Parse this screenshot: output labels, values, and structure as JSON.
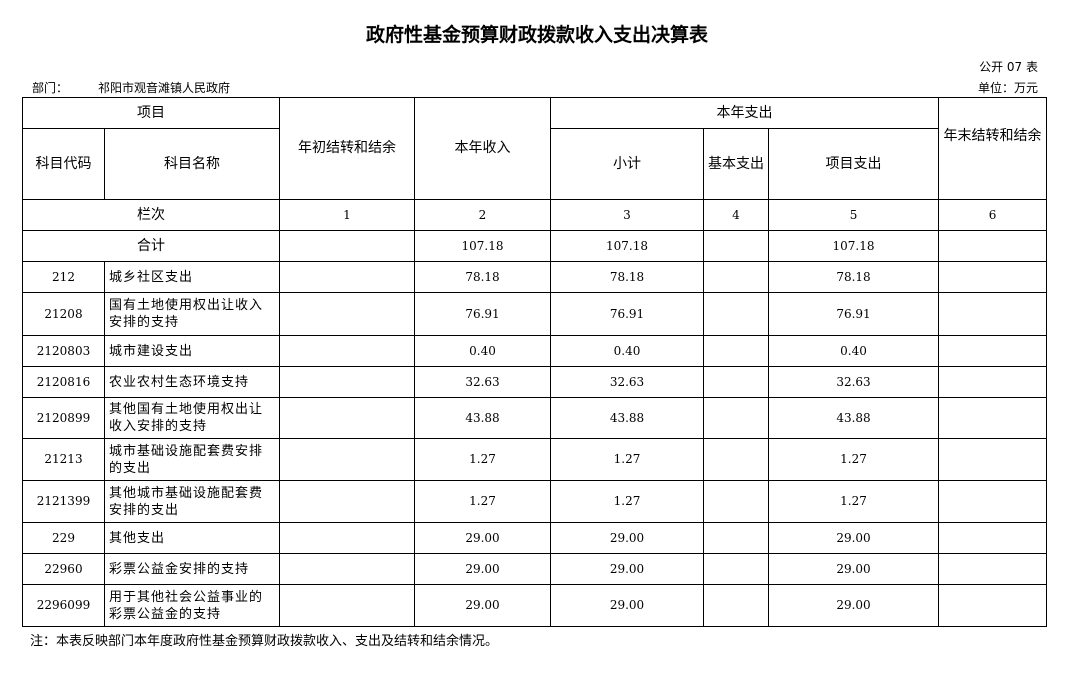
{
  "title": "政府性基金预算财政拨款收入支出决算表",
  "table_no": "公开 07 表",
  "department_label": "部门：",
  "department": "祁阳市观音滩镇人民政府",
  "unit": "单位：万元",
  "headers": {
    "project": "项目",
    "code": "科目代码",
    "name": "科目名称",
    "begin_balance": "年初结转和结余",
    "income": "本年收入",
    "expense": "本年支出",
    "subtotal": "小计",
    "basic": "基本支出",
    "project_exp": "项目支出",
    "end_balance": "年末结转和结余",
    "column_index": "栏次",
    "col_nums": [
      "1",
      "2",
      "3",
      "4",
      "5",
      "6"
    ],
    "total": "合计"
  },
  "total": {
    "begin": "",
    "income": "107.18",
    "subtotal": "107.18",
    "basic": "",
    "project": "107.18",
    "end": ""
  },
  "rows": [
    {
      "code": "212",
      "name": "城乡社区支出",
      "begin": "",
      "income": "78.18",
      "subtotal": "78.18",
      "basic": "",
      "project": "78.18",
      "end": ""
    },
    {
      "code": "21208",
      "name": "国有土地使用权出让收入安排的支持",
      "begin": "",
      "income": "76.91",
      "subtotal": "76.91",
      "basic": "",
      "project": "76.91",
      "end": ""
    },
    {
      "code": "2120803",
      "name": "城市建设支出",
      "begin": "",
      "income": "0.40",
      "subtotal": "0.40",
      "basic": "",
      "project": "0.40",
      "end": ""
    },
    {
      "code": "2120816",
      "name": "农业农村生态环境支持",
      "begin": "",
      "income": "32.63",
      "subtotal": "32.63",
      "basic": "",
      "project": "32.63",
      "end": ""
    },
    {
      "code": "2120899",
      "name": "其他国有土地使用权出让收入安排的支持",
      "begin": "",
      "income": "43.88",
      "subtotal": "43.88",
      "basic": "",
      "project": "43.88",
      "end": ""
    },
    {
      "code": "21213",
      "name": "城市基础设施配套费安排的支出",
      "begin": "",
      "income": "1.27",
      "subtotal": "1.27",
      "basic": "",
      "project": "1.27",
      "end": ""
    },
    {
      "code": "2121399",
      "name": "其他城市基础设施配套费安排的支出",
      "begin": "",
      "income": "1.27",
      "subtotal": "1.27",
      "basic": "",
      "project": "1.27",
      "end": ""
    },
    {
      "code": "229",
      "name": "其他支出",
      "begin": "",
      "income": "29.00",
      "subtotal": "29.00",
      "basic": "",
      "project": "29.00",
      "end": ""
    },
    {
      "code": "22960",
      "name": "彩票公益金安排的支持",
      "begin": "",
      "income": "29.00",
      "subtotal": "29.00",
      "basic": "",
      "project": "29.00",
      "end": ""
    },
    {
      "code": "2296099",
      "name": "用于其他社会公益事业的彩票公益金的支持",
      "begin": "",
      "income": "29.00",
      "subtotal": "29.00",
      "basic": "",
      "project": "29.00",
      "end": ""
    }
  ],
  "note": "注：本表反映部门本年度政府性基金预算财政拨款收入、支出及结转和结余情况。"
}
